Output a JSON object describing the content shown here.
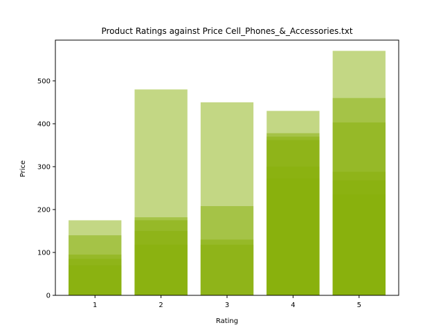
{
  "chart_data": {
    "type": "bar",
    "title": "Product Ratings against Price Cell_Phones_&_Accessories.txt",
    "xlabel": "Rating",
    "ylabel": "Price",
    "categories": [
      "1",
      "2",
      "3",
      "4",
      "5"
    ],
    "x_values": [
      1,
      2,
      3,
      4,
      5
    ],
    "xlim": [
      0.4,
      5.6
    ],
    "ylim": [
      0,
      595
    ],
    "y_ticks": [
      0,
      100,
      200,
      300,
      400,
      500
    ],
    "bar_color": "#88b00a",
    "bar_alpha": 0.5,
    "grid": false,
    "legend": "none",
    "bar_values": [
      [
        175,
        140,
        95,
        85,
        70
      ],
      [
        480,
        182,
        175,
        150,
        118
      ],
      [
        450,
        208,
        130,
        118
      ],
      [
        430,
        378,
        370,
        362,
        300,
        272
      ],
      [
        570,
        460,
        403,
        288,
        268,
        235
      ]
    ]
  }
}
